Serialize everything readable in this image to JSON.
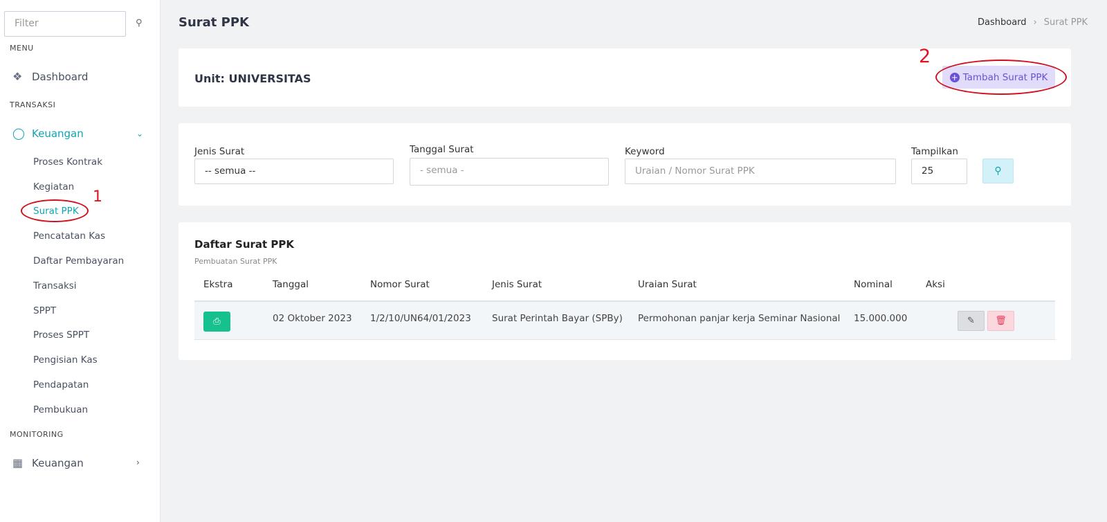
{
  "sidebar": {
    "filter_placeholder": "Filter",
    "section_menu": "MENU",
    "dashboard": "Dashboard",
    "section_transaksi": "TRANSAKSI",
    "keuangan": "Keuangan",
    "sub_items": [
      "Proses Kontrak",
      "Kegiatan",
      "Surat PPK",
      "Pencatatan Kas",
      "Daftar Pembayaran",
      "Transaksi",
      "SPPT",
      "Proses SPPT",
      "Pengisian Kas",
      "Pendapatan",
      "Pembukuan"
    ],
    "section_monitoring": "MONITORING",
    "monitoring_keuangan": "Keuangan"
  },
  "header": {
    "title": "Surat PPK",
    "breadcrumb": [
      "Dashboard",
      "Surat PPK"
    ]
  },
  "unit_card": {
    "title": "Unit: UNIVERSITAS",
    "add_button": "Tambah Surat PPK"
  },
  "filters": {
    "jenis_label": "Jenis Surat",
    "jenis_value": "-- semua --",
    "tanggal_label": "Tanggal Surat",
    "tanggal_placeholder": "- semua -",
    "keyword_label": "Keyword",
    "keyword_placeholder": "Uraian / Nomor Surat PPK",
    "tampilkan_label": "Tampilkan",
    "tampilkan_value": "25"
  },
  "list": {
    "title": "Daftar Surat PPK",
    "subtitle": "Pembuatan Surat PPK",
    "columns": [
      "Ekstra",
      "Tanggal",
      "Nomor Surat",
      "Jenis Surat",
      "Uraian Surat",
      "Nominal",
      "Aksi"
    ],
    "rows": [
      {
        "tanggal": "02 Oktober 2023",
        "nomor": "1/2/10/UN64/01/2023",
        "jenis": "Surat Perintah Bayar (SPBy)",
        "uraian": "Permohonan panjar kerja Seminar Nasional",
        "nominal": "15.000.000"
      }
    ]
  },
  "annotations": [
    "1",
    "2"
  ],
  "colors": {
    "accent": "#10a5b5",
    "add_button": "#6a52d8",
    "print": "#17c08f",
    "delete": "#e83a5a",
    "annotation": "#e0141e"
  }
}
